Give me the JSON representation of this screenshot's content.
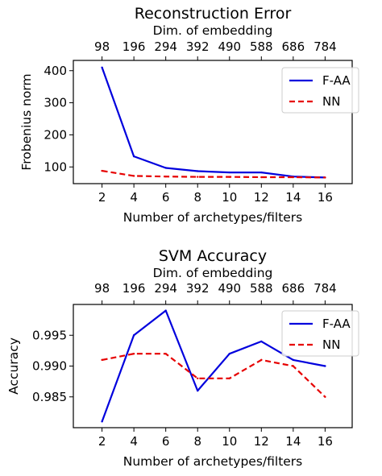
{
  "chart_data": [
    {
      "type": "line",
      "title": "Reconstruction Error",
      "xlabel": "Number of archetypes/filters",
      "ylabel": "Frobenius norm",
      "secondary_xlabel": "Dim. of embedding",
      "x": [
        2,
        4,
        6,
        8,
        10,
        12,
        14,
        16
      ],
      "x_ticks": [
        "2",
        "4",
        "6",
        "8",
        "10",
        "12",
        "14",
        "16"
      ],
      "secondary_x_ticks": [
        "98",
        "196",
        "294",
        "392",
        "490",
        "588",
        "686",
        "784"
      ],
      "xlim": [
        0.2,
        17.7
      ],
      "ylim": [
        48,
        432
      ],
      "y_ticks": [
        100,
        200,
        300,
        400
      ],
      "y_tick_labels": [
        "100",
        "200",
        "300",
        "400"
      ],
      "grid": false,
      "legend_position": "top-right",
      "series": [
        {
          "name": "F-AA",
          "color": "#0000dd",
          "dash": "solid",
          "values": [
            410,
            133,
            97,
            87,
            83,
            83,
            70,
            67
          ]
        },
        {
          "name": "NN",
          "color": "#e60000",
          "dash": "dashed",
          "values": [
            88,
            72,
            70,
            69,
            69,
            68,
            68,
            67
          ]
        }
      ]
    },
    {
      "type": "line",
      "title": "SVM Accuracy",
      "xlabel": "Number of archetypes/filters",
      "ylabel": "Accuracy",
      "secondary_xlabel": "Dim. of embedding",
      "x": [
        2,
        4,
        6,
        8,
        10,
        12,
        14,
        16
      ],
      "x_ticks": [
        "2",
        "4",
        "6",
        "8",
        "10",
        "12",
        "14",
        "16"
      ],
      "secondary_x_ticks": [
        "98",
        "196",
        "294",
        "392",
        "490",
        "588",
        "686",
        "784"
      ],
      "xlim": [
        0.2,
        17.7
      ],
      "ylim": [
        0.98,
        1.0
      ],
      "y_ticks": [
        0.985,
        0.99,
        0.995
      ],
      "y_tick_labels": [
        "0.985",
        "0.990",
        "0.995"
      ],
      "grid": false,
      "legend_position": "top-right",
      "series": [
        {
          "name": "F-AA",
          "color": "#0000dd",
          "dash": "solid",
          "values": [
            0.981,
            0.995,
            0.999,
            0.986,
            0.992,
            0.994,
            0.991,
            0.99
          ]
        },
        {
          "name": "NN",
          "color": "#e60000",
          "dash": "dashed",
          "values": [
            0.991,
            0.992,
            0.992,
            0.988,
            0.988,
            0.991,
            0.99,
            0.985
          ]
        }
      ]
    }
  ]
}
